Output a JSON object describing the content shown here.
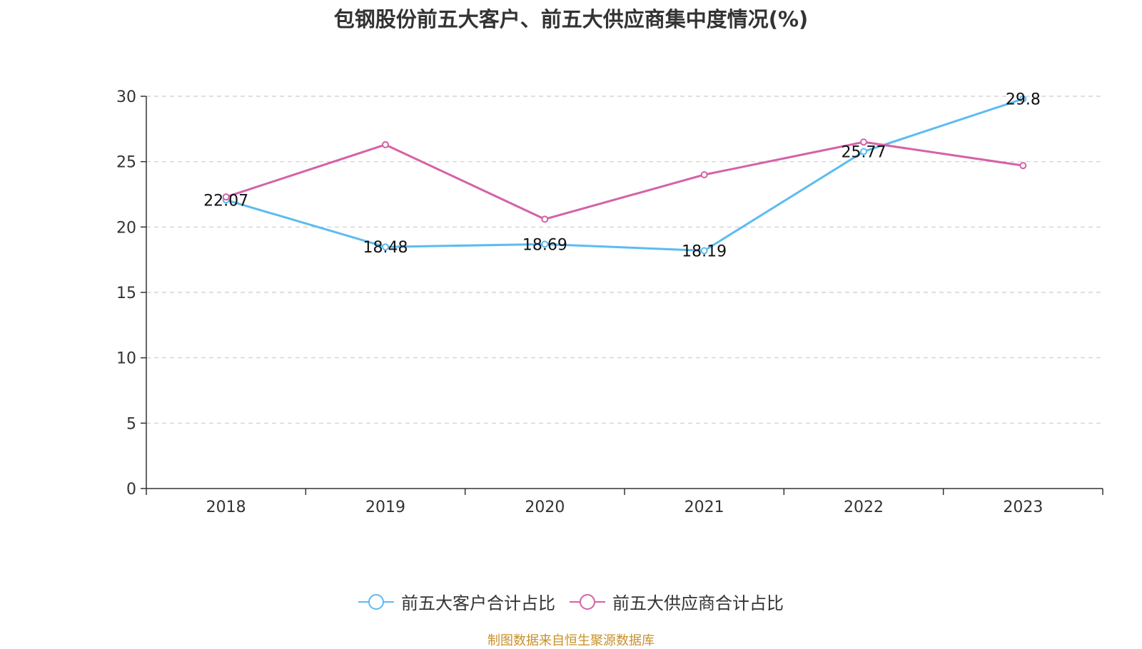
{
  "chart_data": {
    "type": "line",
    "title": "包钢股份前五大客户、前五大供应商集中度情况(%)",
    "categories": [
      "2018",
      "2019",
      "2020",
      "2021",
      "2022",
      "2023"
    ],
    "ylim": [
      0,
      30
    ],
    "yticks": [
      0,
      5,
      10,
      15,
      20,
      25,
      30
    ],
    "grid": true,
    "series": [
      {
        "name": "前五大客户合计占比",
        "color": "#5bbcf0",
        "values": [
          22.07,
          18.48,
          18.69,
          18.19,
          25.77,
          29.8
        ],
        "labels": [
          "22.07",
          "18.48",
          "18.69",
          "18.19",
          "25.77",
          "29.8"
        ]
      },
      {
        "name": "前五大供应商合计占比",
        "color": "#d462a7",
        "values": [
          22.3,
          26.3,
          20.6,
          24.0,
          26.5,
          24.7
        ]
      }
    ],
    "legend": "bottom-center"
  },
  "source_note": "制图数据来自恒生聚源数据库"
}
